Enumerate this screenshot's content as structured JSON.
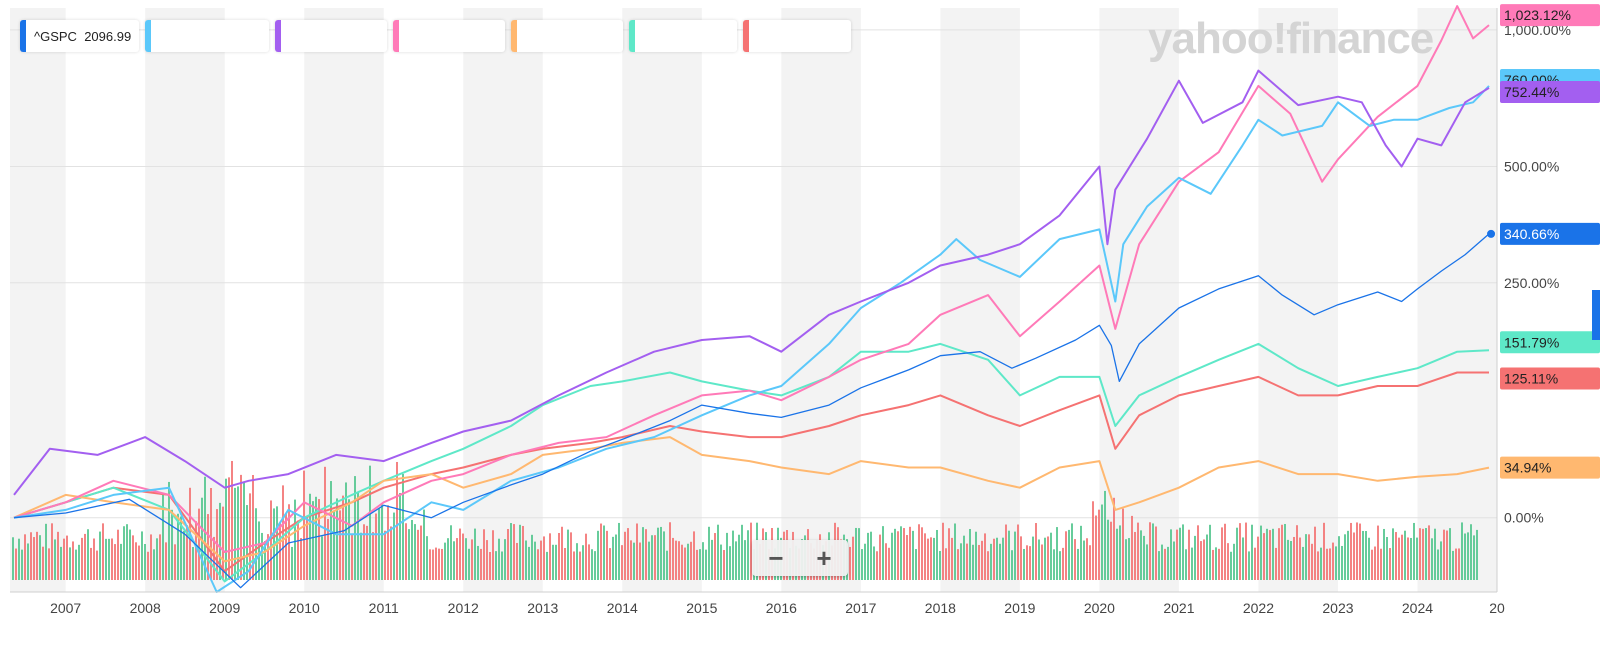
{
  "logo_text": "yahoo!finance",
  "legend": [
    {
      "symbol": "^GSPC",
      "value": "2096.99",
      "color": "#1a73e8"
    },
    {
      "symbol": "",
      "value": "",
      "color": "#5bc8fa"
    },
    {
      "symbol": "",
      "value": "",
      "color": "#a35ff0"
    },
    {
      "symbol": "",
      "value": "",
      "color": "#ff7ab8"
    },
    {
      "symbol": "",
      "value": "",
      "color": "#ffb870"
    },
    {
      "symbol": "",
      "value": "",
      "color": "#5ee8c8"
    },
    {
      "symbol": "",
      "value": "",
      "color": "#f57272"
    }
  ],
  "zoom": {
    "minus": "−",
    "plus": "+"
  },
  "chart_data": {
    "type": "line",
    "x_ticks": [
      "2007",
      "2008",
      "2009",
      "2010",
      "2011",
      "2012",
      "2013",
      "2014",
      "2015",
      "2016",
      "2017",
      "2018",
      "2019",
      "2020",
      "2021",
      "2022",
      "2023",
      "2024",
      "20"
    ],
    "x_range": [
      2006.3,
      2025.0
    ],
    "y_ticks": [
      "1,000.00%",
      "500.00%",
      "250.00%",
      "0.00%"
    ],
    "y_tick_values": [
      1000,
      500,
      250,
      0
    ],
    "y_scale": "log",
    "y_range": [
      -40,
      1110
    ],
    "grid": true,
    "series": [
      {
        "name": "^GSPC",
        "color": "#1a73e8",
        "width": 1.3,
        "end_label": "340.66%",
        "x": [
          2006.35,
          2007.0,
          2007.8,
          2008.5,
          2009.2,
          2009.8,
          2010.5,
          2011.0,
          2011.6,
          2012.0,
          2012.6,
          2013.0,
          2013.6,
          2014.0,
          2014.6,
          2015.0,
          2015.6,
          2016.0,
          2016.6,
          2017.0,
          2017.6,
          2018.0,
          2018.5,
          2018.9,
          2019.2,
          2019.7,
          2020.0,
          2020.15,
          2020.25,
          2020.5,
          2021.0,
          2021.5,
          2022.0,
          2022.3,
          2022.7,
          2023.0,
          2023.5,
          2023.8,
          2024.0,
          2024.3,
          2024.6,
          2024.9
        ],
        "y": [
          0,
          3,
          12,
          -10,
          -38,
          -15,
          -8,
          8,
          0,
          10,
          22,
          30,
          48,
          58,
          75,
          90,
          82,
          78,
          90,
          108,
          128,
          145,
          150,
          130,
          142,
          165,
          185,
          158,
          115,
          160,
          210,
          240,
          262,
          230,
          200,
          215,
          235,
          220,
          240,
          270,
          300,
          340.66
        ]
      },
      {
        "name": "",
        "color": "#5bc8fa",
        "width": 2,
        "end_label": "760.00%",
        "x": [
          2006.35,
          2007.0,
          2007.6,
          2008.3,
          2008.9,
          2009.3,
          2009.8,
          2010.4,
          2011.0,
          2011.6,
          2012.0,
          2012.6,
          2013.2,
          2013.8,
          2014.4,
          2015.0,
          2015.6,
          2016.0,
          2016.6,
          2017.0,
          2017.5,
          2018.0,
          2018.2,
          2018.5,
          2019.0,
          2019.5,
          2020.0,
          2020.2,
          2020.3,
          2020.6,
          2021.0,
          2021.4,
          2021.8,
          2022.0,
          2022.3,
          2022.8,
          2023.0,
          2023.4,
          2023.7,
          2024.0,
          2024.4,
          2024.7,
          2024.9
        ],
        "y": [
          0,
          5,
          15,
          20,
          -40,
          -30,
          5,
          -10,
          -10,
          10,
          5,
          25,
          35,
          50,
          60,
          80,
          100,
          110,
          160,
          210,
          250,
          300,
          330,
          290,
          260,
          330,
          350,
          220,
          320,
          400,
          470,
          430,
          560,
          640,
          590,
          620,
          700,
          620,
          640,
          640,
          680,
          700,
          760
        ]
      },
      {
        "name": "",
        "color": "#a35ff0",
        "width": 2,
        "end_label": "752.44%",
        "x": [
          2006.35,
          2006.8,
          2007.4,
          2008.0,
          2008.5,
          2009.0,
          2009.3,
          2009.8,
          2010.4,
          2011.0,
          2011.6,
          2012.0,
          2012.6,
          2013.2,
          2013.8,
          2014.4,
          2015.0,
          2015.6,
          2016.0,
          2016.6,
          2017.0,
          2017.6,
          2018.0,
          2018.6,
          2019.0,
          2019.5,
          2020.0,
          2020.1,
          2020.2,
          2020.6,
          2021.0,
          2021.3,
          2021.8,
          2022.0,
          2022.5,
          2023.0,
          2023.3,
          2023.6,
          2023.8,
          2024.0,
          2024.3,
          2024.6,
          2024.9
        ],
        "y": [
          15,
          50,
          45,
          60,
          40,
          20,
          25,
          30,
          45,
          40,
          55,
          65,
          75,
          100,
          125,
          150,
          165,
          170,
          150,
          200,
          220,
          250,
          280,
          300,
          320,
          380,
          500,
          320,
          440,
          580,
          780,
          630,
          700,
          820,
          690,
          720,
          700,
          560,
          500,
          580,
          560,
          700,
          752.44
        ]
      },
      {
        "name": "",
        "color": "#ff7ab8",
        "width": 2,
        "end_label": "1,023.12%",
        "x": [
          2006.35,
          2007.0,
          2007.6,
          2008.3,
          2009.0,
          2009.5,
          2010.0,
          2010.6,
          2011.0,
          2011.6,
          2012.0,
          2012.6,
          2013.2,
          2013.8,
          2014.4,
          2015.0,
          2015.6,
          2016.0,
          2016.6,
          2017.0,
          2017.6,
          2018.0,
          2018.6,
          2019.0,
          2019.5,
          2020.0,
          2020.2,
          2020.5,
          2021.0,
          2021.5,
          2022.0,
          2022.4,
          2022.8,
          2023.0,
          2023.5,
          2024.0,
          2024.3,
          2024.5,
          2024.7,
          2024.9
        ],
        "y": [
          0,
          10,
          25,
          15,
          -20,
          -15,
          10,
          -5,
          10,
          25,
          30,
          45,
          55,
          60,
          80,
          100,
          105,
          95,
          120,
          140,
          160,
          200,
          230,
          170,
          220,
          280,
          180,
          320,
          460,
          540,
          760,
          660,
          460,
          520,
          650,
          760,
          950,
          1120,
          960,
          1023.12
        ]
      },
      {
        "name": "",
        "color": "#ffb870",
        "width": 2,
        "end_label": "34.94%",
        "x": [
          2006.35,
          2007.0,
          2007.6,
          2008.3,
          2009.0,
          2009.5,
          2010.0,
          2010.6,
          2011.0,
          2011.6,
          2012.0,
          2012.6,
          2013.0,
          2013.6,
          2014.0,
          2014.6,
          2015.0,
          2015.6,
          2016.0,
          2016.6,
          2017.0,
          2017.6,
          2018.0,
          2018.6,
          2019.0,
          2019.5,
          2020.0,
          2020.2,
          2020.5,
          2021.0,
          2021.5,
          2022.0,
          2022.5,
          2023.0,
          2023.5,
          2024.0,
          2024.5,
          2024.9
        ],
        "y": [
          0,
          15,
          10,
          5,
          -25,
          -20,
          -5,
          10,
          25,
          30,
          20,
          30,
          45,
          50,
          55,
          60,
          45,
          40,
          35,
          30,
          40,
          35,
          35,
          25,
          20,
          35,
          40,
          5,
          10,
          20,
          35,
          40,
          30,
          30,
          25,
          28,
          30,
          34.94
        ]
      },
      {
        "name": "",
        "color": "#5ee8c8",
        "width": 2,
        "end_label": "151.79%",
        "x": [
          2006.35,
          2007.0,
          2007.6,
          2008.3,
          2009.0,
          2009.5,
          2010.0,
          2010.6,
          2011.0,
          2011.6,
          2012.0,
          2012.6,
          2013.0,
          2013.6,
          2014.0,
          2014.6,
          2015.0,
          2015.6,
          2016.0,
          2016.6,
          2017.0,
          2017.6,
          2018.0,
          2018.6,
          2019.0,
          2019.5,
          2020.0,
          2020.2,
          2020.5,
          2021.0,
          2021.5,
          2022.0,
          2022.5,
          2023.0,
          2023.5,
          2024.0,
          2024.5,
          2024.9
        ],
        "y": [
          0,
          10,
          20,
          5,
          -35,
          -20,
          0,
          15,
          25,
          40,
          50,
          70,
          90,
          110,
          115,
          125,
          115,
          105,
          100,
          120,
          150,
          150,
          160,
          140,
          100,
          120,
          120,
          70,
          100,
          120,
          140,
          160,
          130,
          110,
          120,
          130,
          150,
          151.79
        ]
      },
      {
        "name": "",
        "color": "#f57272",
        "width": 2,
        "end_label": "125.11%",
        "x": [
          2006.35,
          2007.0,
          2007.6,
          2008.3,
          2009.0,
          2009.5,
          2010.0,
          2010.6,
          2011.0,
          2011.6,
          2012.0,
          2012.6,
          2013.0,
          2013.6,
          2014.0,
          2014.6,
          2015.0,
          2015.6,
          2016.0,
          2016.6,
          2017.0,
          2017.6,
          2018.0,
          2018.6,
          2019.0,
          2019.5,
          2020.0,
          2020.2,
          2020.5,
          2021.0,
          2021.5,
          2022.0,
          2022.5,
          2023.0,
          2023.5,
          2024.0,
          2024.5,
          2024.9
        ],
        "y": [
          0,
          10,
          20,
          15,
          -30,
          -15,
          0,
          10,
          20,
          30,
          35,
          45,
          50,
          55,
          60,
          70,
          65,
          60,
          60,
          70,
          80,
          90,
          100,
          80,
          70,
          85,
          100,
          50,
          80,
          100,
          110,
          120,
          100,
          100,
          110,
          110,
          125,
          125.11
        ]
      }
    ]
  }
}
